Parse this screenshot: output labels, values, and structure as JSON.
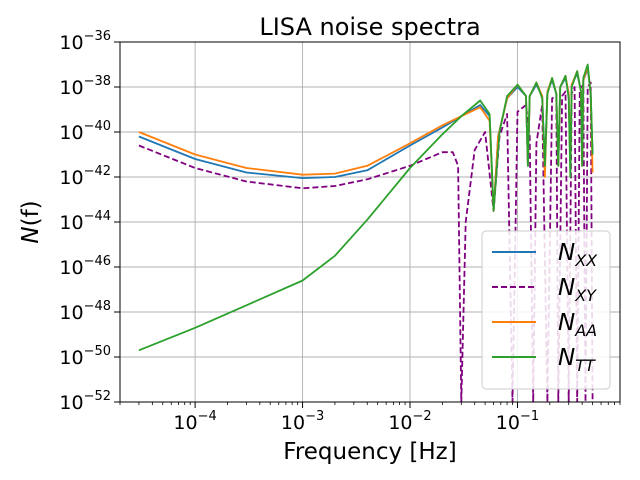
{
  "chart_data": {
    "type": "line",
    "title": "LISA noise spectra",
    "xlabel": "Frequency [Hz]",
    "ylabel_base": "N",
    "ylabel_arg": "(f)",
    "xscale": "log",
    "yscale": "log",
    "xlim": [
      2e-05,
      0.9
    ],
    "ylim": [
      1e-52,
      1e-36
    ],
    "grid": true,
    "legend_position": "lower-right",
    "x_ticks": [
      {
        "value": 0.0001,
        "base": "10",
        "exp": "−4"
      },
      {
        "value": 0.001,
        "base": "10",
        "exp": "−3"
      },
      {
        "value": 0.01,
        "base": "10",
        "exp": "−2"
      },
      {
        "value": 0.1,
        "base": "10",
        "exp": "−1"
      }
    ],
    "y_ticks": [
      {
        "value": 1e-52,
        "base": "10",
        "exp": "−52"
      },
      {
        "value": 1e-50,
        "base": "10",
        "exp": "−50"
      },
      {
        "value": 1e-48,
        "base": "10",
        "exp": "−48"
      },
      {
        "value": 1e-46,
        "base": "10",
        "exp": "−46"
      },
      {
        "value": 1e-44,
        "base": "10",
        "exp": "−44"
      },
      {
        "value": 1e-42,
        "base": "10",
        "exp": "−42"
      },
      {
        "value": 1e-40,
        "base": "10",
        "exp": "−40"
      },
      {
        "value": 1e-38,
        "base": "10",
        "exp": "−38"
      },
      {
        "value": 1e-36,
        "base": "10",
        "exp": "−36"
      }
    ],
    "series": [
      {
        "name": "N_XX",
        "label_base": "N",
        "label_sub": "XX",
        "color": "#1f77b4",
        "dashed": false,
        "points": [
          [
            3e-05,
            -40.2
          ],
          [
            0.0001,
            -41.2
          ],
          [
            0.0003,
            -41.8
          ],
          [
            0.001,
            -42.05
          ],
          [
            0.002,
            -42.0
          ],
          [
            0.004,
            -41.7
          ],
          [
            0.01,
            -40.6
          ],
          [
            0.02,
            -39.8
          ],
          [
            0.03,
            -39.3
          ],
          [
            0.045,
            -38.8
          ],
          [
            0.055,
            -39.3
          ],
          [
            0.06,
            -43.5
          ],
          [
            0.066,
            -40.2
          ],
          [
            0.08,
            -38.5
          ],
          [
            0.1,
            -38.0
          ],
          [
            0.12,
            -38.4
          ],
          [
            0.125,
            -41.5
          ],
          [
            0.13,
            -38.4
          ],
          [
            0.15,
            -37.9
          ],
          [
            0.17,
            -38.4
          ],
          [
            0.18,
            -41.5
          ],
          [
            0.19,
            -38.2
          ],
          [
            0.21,
            -37.7
          ],
          [
            0.23,
            -38.3
          ],
          [
            0.24,
            -41.5
          ],
          [
            0.25,
            -38.0
          ],
          [
            0.28,
            -37.6
          ],
          [
            0.3,
            -38.3
          ],
          [
            0.31,
            -41.5
          ],
          [
            0.32,
            -37.9
          ],
          [
            0.36,
            -37.4
          ],
          [
            0.39,
            -38.2
          ],
          [
            0.4,
            -41.5
          ],
          [
            0.41,
            -37.7
          ],
          [
            0.45,
            -37.2
          ],
          [
            0.48,
            -38.3
          ],
          [
            0.5,
            -41.0
          ]
        ]
      },
      {
        "name": "N_XY",
        "label_base": "N",
        "label_sub": "XY",
        "color": "#800080",
        "dashed": true,
        "points": [
          [
            3e-05,
            -40.6
          ],
          [
            0.0001,
            -41.6
          ],
          [
            0.0003,
            -42.2
          ],
          [
            0.001,
            -42.5
          ],
          [
            0.002,
            -42.4
          ],
          [
            0.004,
            -42.1
          ],
          [
            0.01,
            -41.5
          ],
          [
            0.02,
            -40.9
          ],
          [
            0.025,
            -40.9
          ],
          [
            0.028,
            -41.5
          ],
          [
            0.03,
            -52
          ],
          [
            0.033,
            -44
          ],
          [
            0.04,
            -40.8
          ],
          [
            0.05,
            -40.0
          ],
          [
            0.06,
            -43.5
          ],
          [
            0.068,
            -40.2
          ],
          [
            0.08,
            -39.2
          ],
          [
            0.09,
            -52
          ],
          [
            0.1,
            -39.1
          ],
          [
            0.12,
            -38.8
          ],
          [
            0.13,
            -40.2
          ],
          [
            0.14,
            -52
          ],
          [
            0.15,
            -40.5
          ],
          [
            0.17,
            -38.8
          ],
          [
            0.19,
            -52
          ],
          [
            0.21,
            -38.5
          ],
          [
            0.23,
            -38.4
          ],
          [
            0.24,
            -52
          ],
          [
            0.26,
            -38.4
          ],
          [
            0.28,
            -38.2
          ],
          [
            0.3,
            -52
          ],
          [
            0.32,
            -38.3
          ],
          [
            0.34,
            -38.0
          ],
          [
            0.36,
            -52
          ],
          [
            0.38,
            -38.1
          ],
          [
            0.41,
            -37.9
          ],
          [
            0.43,
            -52
          ],
          [
            0.45,
            -38.0
          ],
          [
            0.48,
            -37.8
          ],
          [
            0.5,
            -52
          ]
        ]
      },
      {
        "name": "N_AA",
        "label_base": "N",
        "label_sub": "AA",
        "color": "#ff7f0e",
        "dashed": false,
        "points": [
          [
            3e-05,
            -40.0
          ],
          [
            0.0001,
            -41.0
          ],
          [
            0.0003,
            -41.6
          ],
          [
            0.001,
            -41.9
          ],
          [
            0.002,
            -41.85
          ],
          [
            0.004,
            -41.5
          ],
          [
            0.01,
            -40.5
          ],
          [
            0.02,
            -39.7
          ],
          [
            0.03,
            -39.3
          ],
          [
            0.045,
            -38.9
          ],
          [
            0.055,
            -39.5
          ],
          [
            0.06,
            -43.5
          ],
          [
            0.066,
            -40.2
          ],
          [
            0.08,
            -38.5
          ],
          [
            0.1,
            -37.9
          ],
          [
            0.12,
            -38.4
          ],
          [
            0.125,
            -41.5
          ],
          [
            0.13,
            -38.4
          ],
          [
            0.15,
            -37.8
          ],
          [
            0.17,
            -38.4
          ],
          [
            0.18,
            -42.0
          ],
          [
            0.19,
            -38.2
          ],
          [
            0.21,
            -37.6
          ],
          [
            0.23,
            -38.3
          ],
          [
            0.24,
            -41.5
          ],
          [
            0.25,
            -38.0
          ],
          [
            0.28,
            -37.5
          ],
          [
            0.3,
            -38.3
          ],
          [
            0.31,
            -41.5
          ],
          [
            0.32,
            -37.9
          ],
          [
            0.36,
            -37.3
          ],
          [
            0.39,
            -38.2
          ],
          [
            0.4,
            -41.5
          ],
          [
            0.41,
            -37.7
          ],
          [
            0.45,
            -37.1
          ],
          [
            0.48,
            -38.3
          ],
          [
            0.5,
            -41.8
          ]
        ]
      },
      {
        "name": "N_TT",
        "label_base": "N",
        "label_sub": "TT",
        "color": "#2ca02c",
        "dashed": false,
        "points": [
          [
            3e-05,
            -49.7
          ],
          [
            0.0001,
            -48.7
          ],
          [
            0.0003,
            -47.7
          ],
          [
            0.001,
            -46.6
          ],
          [
            0.002,
            -45.5
          ],
          [
            0.004,
            -43.9
          ],
          [
            0.01,
            -41.6
          ],
          [
            0.02,
            -40.1
          ],
          [
            0.03,
            -39.3
          ],
          [
            0.045,
            -38.6
          ],
          [
            0.055,
            -39.2
          ],
          [
            0.06,
            -43.5
          ],
          [
            0.068,
            -40.0
          ],
          [
            0.08,
            -38.4
          ],
          [
            0.1,
            -37.9
          ],
          [
            0.12,
            -38.4
          ],
          [
            0.125,
            -41.5
          ],
          [
            0.13,
            -38.4
          ],
          [
            0.15,
            -37.8
          ],
          [
            0.17,
            -38.5
          ],
          [
            0.18,
            -41.5
          ],
          [
            0.19,
            -38.3
          ],
          [
            0.21,
            -37.6
          ],
          [
            0.23,
            -38.3
          ],
          [
            0.24,
            -41.5
          ],
          [
            0.25,
            -38.0
          ],
          [
            0.28,
            -37.5
          ],
          [
            0.3,
            -38.5
          ],
          [
            0.31,
            -42.0
          ],
          [
            0.32,
            -38.0
          ],
          [
            0.36,
            -37.3
          ],
          [
            0.39,
            -38.2
          ],
          [
            0.4,
            -41.5
          ],
          [
            0.41,
            -37.6
          ],
          [
            0.45,
            -37.0
          ],
          [
            0.48,
            -38.3
          ],
          [
            0.5,
            -41.0
          ]
        ]
      }
    ]
  }
}
